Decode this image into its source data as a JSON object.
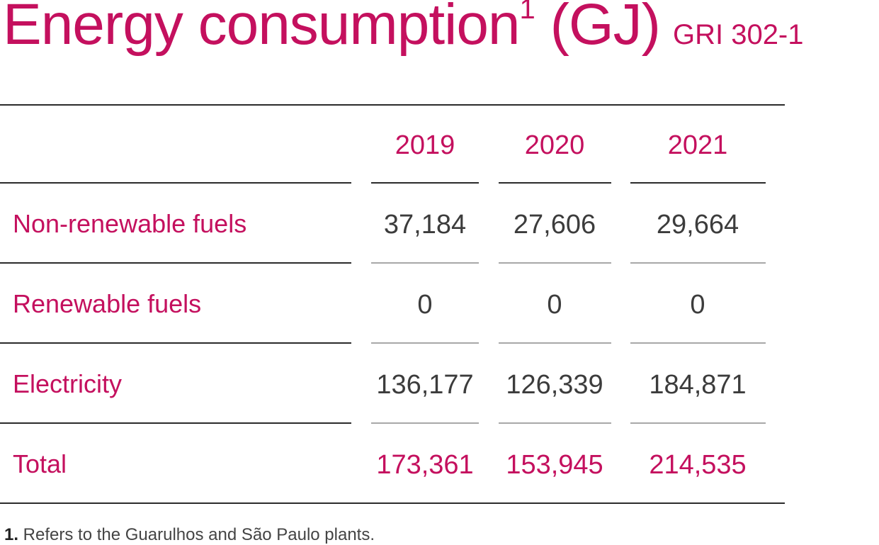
{
  "title": {
    "main": "Energy consumption",
    "superscript": "1",
    "unit": " (GJ)",
    "gri": "GRI 302-1"
  },
  "table": {
    "years": [
      "2019",
      "2020",
      "2021"
    ],
    "rows": [
      {
        "label": "Non-renewable fuels",
        "values": [
          "37,184",
          "27,606",
          "29,664"
        ]
      },
      {
        "label": "Renewable fuels",
        "values": [
          "0",
          "0",
          "0"
        ]
      },
      {
        "label": "Electricity",
        "values": [
          "136,177",
          "126,339",
          "184,871"
        ]
      },
      {
        "label": "Total",
        "values": [
          "173,361",
          "153,945",
          "214,535"
        ]
      }
    ]
  },
  "footnote": {
    "marker": "1.",
    "text": " Refers to the Guarulhos and São Paulo plants."
  },
  "colors": {
    "accent": "#c4105e",
    "text": "#3c3c3c",
    "rule_dark": "#2b2b2b",
    "rule_light": "#a8a8a8"
  }
}
